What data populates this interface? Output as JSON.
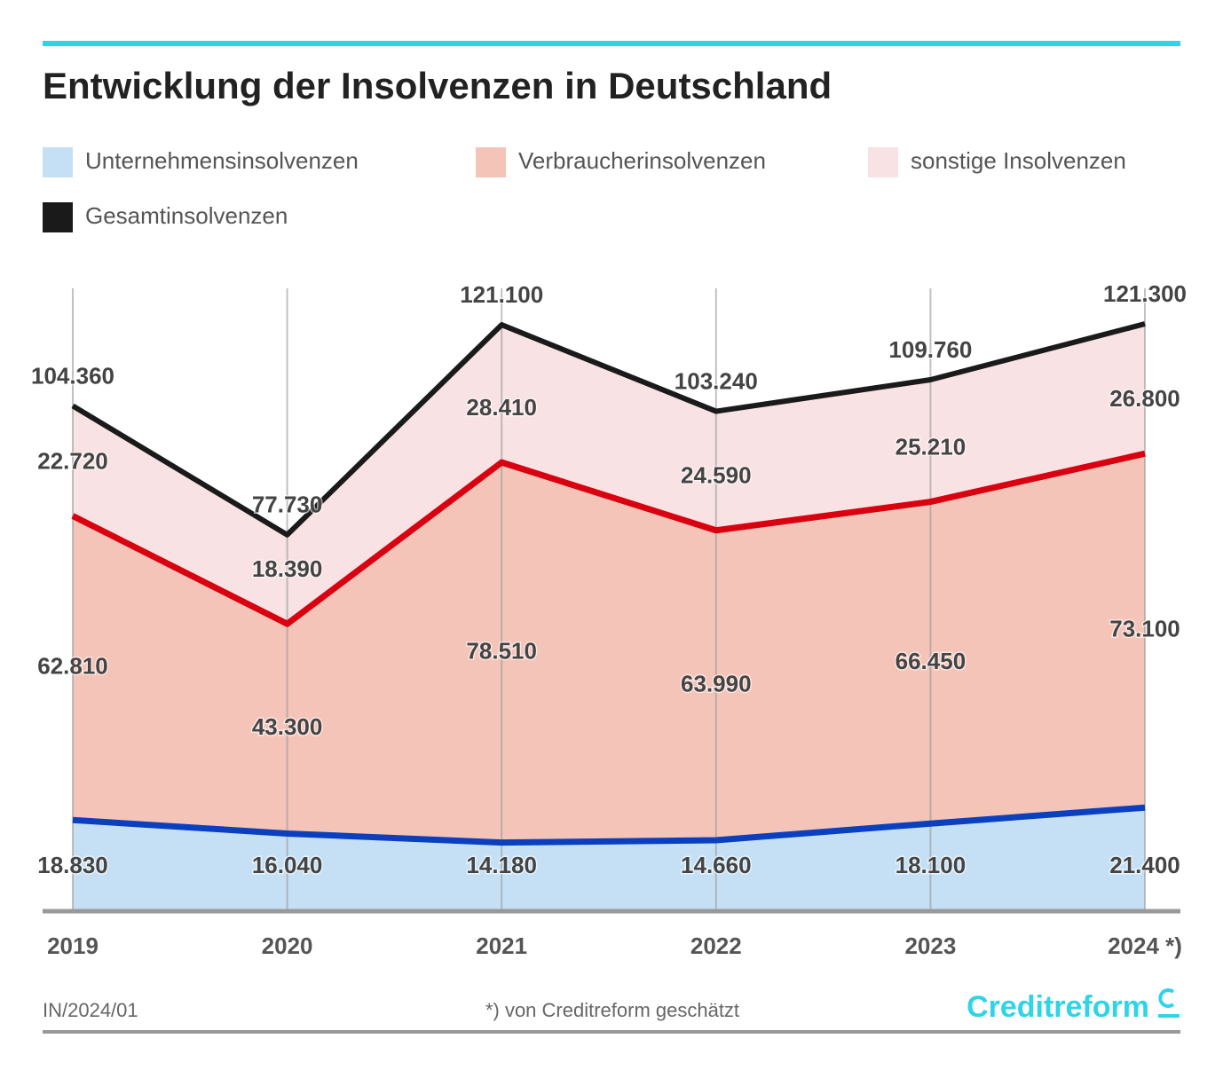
{
  "chart_data": {
    "type": "stacked-area",
    "title": "Entwicklung der Insolvenzen in Deutschland",
    "categories": [
      "2019",
      "2020",
      "2021",
      "2022",
      "2023",
      "2024 *)"
    ],
    "series": [
      {
        "name": "Unternehmensinsolvenzen",
        "color": "#c5e0f5",
        "line_color": "#0a3fbf",
        "values": [
          18830,
          16040,
          14180,
          14660,
          18100,
          21400
        ],
        "value_labels": [
          "18.830",
          "16.040",
          "14.180",
          "14.660",
          "18.100",
          "21.400"
        ]
      },
      {
        "name": "Verbraucherinsolvenzen",
        "color": "#f4c4b8",
        "line_color": "#d9000f",
        "values": [
          62810,
          43300,
          78510,
          63990,
          66450,
          73100
        ],
        "value_labels": [
          "62.810",
          "43.300",
          "78.510",
          "63.990",
          "66.450",
          "73.100"
        ]
      },
      {
        "name": "sonstige Insolvenzen",
        "color": "#f8e2e3",
        "values": [
          22720,
          18390,
          28410,
          24590,
          25210,
          26800
        ],
        "value_labels": [
          "22.720",
          "18.390",
          "28.410",
          "24.590",
          "25.210",
          "26.800"
        ]
      }
    ],
    "total": {
      "name": "Gesamtinsolvenzen",
      "color": "#1a1a1a",
      "values": [
        104360,
        77730,
        121100,
        103240,
        109760,
        121300
      ],
      "value_labels": [
        "104.360",
        "77.730",
        "121.100",
        "103.240",
        "109.760",
        "121.300"
      ]
    },
    "source": "IN/2024/01",
    "note": "*) von Creditreform geschätzt",
    "logo": "Creditreform"
  }
}
